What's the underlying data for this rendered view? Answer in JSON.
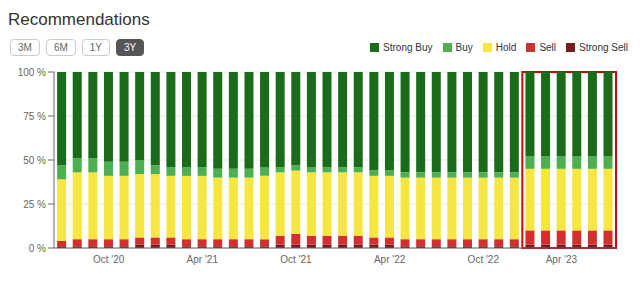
{
  "chart_data": {
    "type": "bar",
    "title": "Recommendations",
    "stacked": true,
    "grid": true,
    "legend": "upper right",
    "buttons": [
      "3M",
      "6M",
      "1Y",
      "3Y"
    ],
    "active_button": "3Y",
    "highlight": {
      "from": 30,
      "to": 35,
      "color": "#dd0000"
    },
    "categories": [
      null,
      null,
      null,
      "Oct '20",
      null,
      null,
      null,
      null,
      null,
      "Apr '21",
      null,
      null,
      null,
      null,
      null,
      "Oct '21",
      null,
      null,
      null,
      null,
      null,
      "Apr '22",
      null,
      null,
      null,
      null,
      null,
      "Oct '22",
      null,
      null,
      null,
      null,
      "Apr '23",
      null,
      null,
      null
    ],
    "series": [
      {
        "name": "Strong Sell",
        "color": "#7b1a1a",
        "values": [
          1,
          1,
          1,
          1,
          1,
          2,
          2,
          2,
          1,
          1,
          1,
          1,
          1,
          1,
          2,
          2,
          2,
          2,
          2,
          2,
          2,
          2,
          1,
          1,
          1,
          1,
          1,
          1,
          1,
          1,
          2,
          2,
          2,
          2,
          2,
          2
        ]
      },
      {
        "name": "Sell",
        "color": "#d32f2f",
        "values": [
          3,
          4,
          4,
          4,
          4,
          4,
          4,
          4,
          4,
          4,
          4,
          4,
          4,
          4,
          5,
          6,
          5,
          5,
          5,
          5,
          4,
          4,
          4,
          4,
          4,
          4,
          4,
          4,
          4,
          4,
          8,
          8,
          8,
          8,
          8,
          8
        ]
      },
      {
        "name": "Hold",
        "color": "#f5e642",
        "values": [
          35,
          38,
          38,
          36,
          36,
          36,
          36,
          35,
          36,
          36,
          35,
          35,
          35,
          36,
          36,
          36,
          36,
          36,
          36,
          36,
          35,
          35,
          35,
          35,
          35,
          35,
          35,
          35,
          35,
          35,
          35,
          35,
          35,
          35,
          35,
          35
        ]
      },
      {
        "name": "Buy",
        "color": "#4caf50",
        "values": [
          8,
          8,
          8,
          8,
          8,
          8,
          5,
          5,
          5,
          5,
          5,
          5,
          5,
          5,
          3,
          3,
          3,
          3,
          3,
          3,
          3,
          3,
          3,
          3,
          3,
          3,
          3,
          3,
          3,
          3,
          7,
          7,
          7,
          7,
          7,
          7
        ]
      },
      {
        "name": "Strong Buy",
        "color": "#1a6b1a",
        "values": [
          53,
          49,
          49,
          51,
          51,
          50,
          53,
          54,
          54,
          54,
          55,
          55,
          55,
          54,
          54,
          53,
          54,
          54,
          54,
          54,
          56,
          56,
          57,
          57,
          57,
          57,
          57,
          57,
          57,
          57,
          48,
          48,
          48,
          48,
          48,
          48
        ]
      }
    ],
    "ylim": [
      0,
      100
    ],
    "yticks": [
      {
        "value": 0,
        "label": "0 %"
      },
      {
        "value": 25,
        "label": "25 %"
      },
      {
        "value": 50,
        "label": "50 %"
      },
      {
        "value": 75,
        "label": "75 %"
      },
      {
        "value": 100,
        "label": "100 %"
      }
    ]
  }
}
